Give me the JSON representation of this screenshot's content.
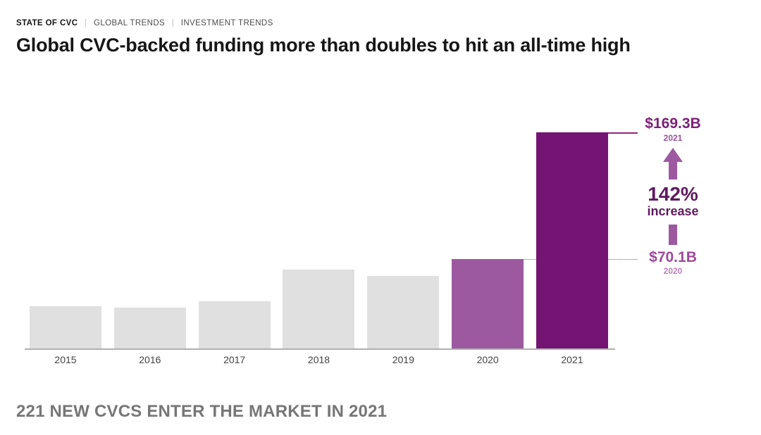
{
  "breadcrumb": {
    "separator": "|",
    "items": [
      {
        "label": "STATE OF CVC"
      },
      {
        "label": "GLOBAL TRENDS"
      },
      {
        "label": "INVESTMENT TRENDS"
      }
    ]
  },
  "header": {
    "title": "Global CVC-backed funding more than doubles to hit an all-time high"
  },
  "chart_data": {
    "type": "bar",
    "title": "Global CVC-backed funding more than doubles to hit an all-time high",
    "categories": [
      "2015",
      "2016",
      "2017",
      "2018",
      "2019",
      "2020",
      "2021"
    ],
    "values": [
      33,
      32,
      37,
      62,
      57,
      70.1,
      169.3
    ],
    "unit": "USD billions",
    "xlabel": "",
    "ylabel": "",
    "ylim": [
      0,
      180
    ],
    "grid": false,
    "y_axis_visible": false,
    "legend": null,
    "bar_colors": {
      "default": "#e0e0e0",
      "2020": "#9c59a0",
      "2021": "#741473"
    },
    "annotations": {
      "high": {
        "value": "$169.3B",
        "year": "2021"
      },
      "low": {
        "value": "$70.1B",
        "year": "2020"
      },
      "change": {
        "pct": "142%",
        "label": "increase"
      }
    }
  },
  "footer": {
    "headline": "221 NEW CVCS ENTER THE MARKET IN 2021"
  },
  "colors": {
    "dark_purple": "#741473",
    "mid_purple": "#9c59a0",
    "gray_bar": "#e0e0e0",
    "label_dark": "#7b1f78",
    "year_high": "#9b4f9e",
    "pct_purple": "#5e1a5e",
    "label_low": "#9b4a9b",
    "year_low": "#bd7fb9",
    "leader_dark": "#8e2487",
    "leader_light": "#cf9ccb",
    "axis_gray": "#b0b0b0",
    "footer_gray": "#767676"
  }
}
